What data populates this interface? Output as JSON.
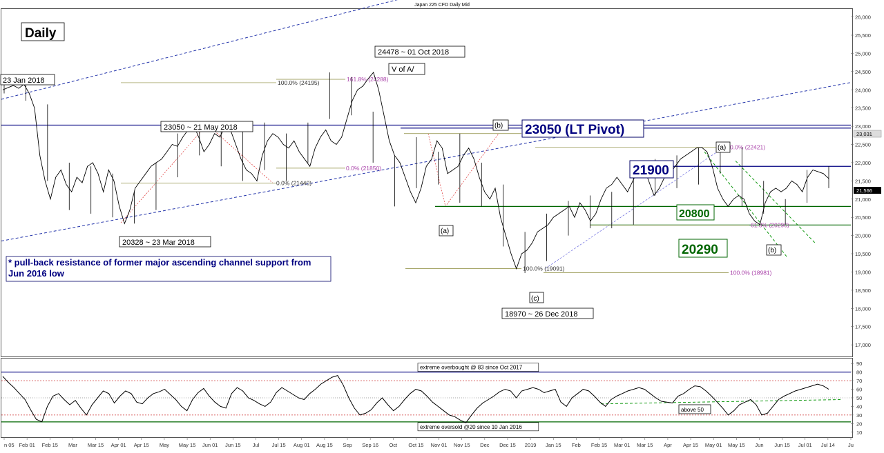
{
  "chart_data": [
    {
      "type": "line",
      "title": "Japan 225 CFD Daily Mid",
      "timeframe_label": "Daily",
      "y_axis": {
        "ticks": [
          "26,000",
          "25,500",
          "25,000",
          "24,500",
          "24,000",
          "23,500",
          "23,000",
          "22,500",
          "22,000",
          "21,500",
          "21,000",
          "20,500",
          "20,000",
          "19,500",
          "19,000",
          "18,500",
          "18,000",
          "17,500",
          "17,000"
        ],
        "ylim": [
          16700,
          26200
        ]
      },
      "x_axis": {
        "ticks": [
          "n 05",
          "Feb 01",
          "Feb 15",
          "Mar",
          "Mar 15",
          "Apr 01",
          "Apr 15",
          "May",
          "May 15",
          "Jun 01",
          "Jun 15",
          "Jul",
          "Jul 15",
          "Aug 01",
          "Aug 15",
          "Sep",
          "Sep 16",
          "Oct",
          "Oct 15",
          "Nov 01",
          "Nov 15",
          "Dec",
          "Dec 15",
          "2019",
          "Jan 15",
          "Feb",
          "Feb 15",
          "Mar 01",
          "Mar 15",
          "Apr",
          "Apr 15",
          "May 01",
          "May 15",
          "Jun",
          "Jun 15",
          "Jul 01",
          "Jul 14",
          "Ju"
        ]
      },
      "series": [
        {
          "values": [
            24000,
            24060,
            24120,
            24040,
            24150,
            23900,
            23500,
            22200,
            21500,
            21000,
            21600,
            21800,
            21400,
            21200,
            21600,
            21450,
            21900,
            22000,
            21700,
            21200,
            21800,
            21500,
            20800,
            20328,
            20700,
            21300,
            21500,
            21700,
            21900,
            22000,
            22100,
            22300,
            22500,
            22450,
            22700,
            22900,
            23050,
            22700,
            22300,
            22500,
            22800,
            22700,
            23000,
            22900,
            22500,
            22100,
            21800,
            21700,
            21500,
            22200,
            22600,
            22800,
            22700,
            22500,
            22400,
            22600,
            22300,
            22100,
            21900,
            22400,
            22700,
            22900,
            22600,
            22500,
            22700,
            23200,
            23700,
            24000,
            24100,
            24300,
            24478,
            24000,
            23300,
            22600,
            22200,
            22000,
            21600,
            21200,
            20900,
            21300,
            21900,
            22100,
            22600,
            22400,
            21700,
            21800,
            21900,
            22200,
            22400,
            22100,
            21600,
            21200,
            21000,
            21300,
            20500,
            20000,
            19500,
            19091,
            19500,
            19600,
            19800,
            20100,
            20200,
            20300,
            20500,
            20600,
            20700,
            20800,
            20500,
            20900,
            20700,
            20400,
            20600,
            21000,
            21300,
            21400,
            21600,
            21400,
            21200,
            21500,
            21800,
            21900,
            21500,
            21100,
            21300,
            21600,
            21700,
            21900,
            22100,
            22200,
            22300,
            22400,
            22421,
            22300,
            21900,
            21300,
            21000,
            20800,
            21000,
            21100,
            21000,
            20600,
            20400,
            20300,
            20900,
            21200,
            21300,
            21200,
            21300,
            21500,
            21400,
            21200,
            21600,
            21800,
            21750,
            21700,
            21566
          ],
          "ranges": [
            [
              23900,
              24200
            ],
            [
              23700,
              24150
            ],
            [
              21500,
              23600
            ],
            [
              20700,
              22000
            ],
            [
              20600,
              21900
            ],
            [
              20500,
              21700
            ],
            [
              20328,
              21200
            ],
            [
              20700,
              22000
            ],
            [
              21600,
              22800
            ],
            [
              22200,
              23050
            ],
            [
              21900,
              23000
            ],
            [
              21500,
              22900
            ],
            [
              21800,
              23100
            ],
            [
              21500,
              22800
            ],
            [
              22000,
              23100
            ],
            [
              23200,
              24478
            ],
            [
              23300,
              24350
            ],
            [
              22000,
              23400
            ],
            [
              20800,
              22200
            ],
            [
              21300,
              22700
            ],
            [
              21400,
              22300
            ],
            [
              20900,
              22798
            ],
            [
              20800,
              22000
            ],
            [
              19700,
              21400
            ],
            [
              18970,
              20100
            ],
            [
              19300,
              20600
            ],
            [
              20000,
              20950
            ],
            [
              20200,
              21100
            ],
            [
              20200,
              21200
            ],
            [
              20300,
              21900
            ],
            [
              21100,
              22100
            ],
            [
              21300,
              22200
            ],
            [
              21400,
              22400
            ],
            [
              21700,
              22500
            ],
            [
              20800,
              22421
            ],
            [
              20600,
              21500
            ],
            [
              20300,
              21000
            ],
            [
              20900,
              21800
            ],
            [
              21300,
              21900
            ]
          ]
        }
      ],
      "horizontal_levels": [
        {
          "value": 23031,
          "label": "23,031"
        },
        {
          "value": 22950,
          "label": ""
        },
        {
          "value": 21900,
          "label": "21900"
        },
        {
          "value": 20800,
          "label": "20800"
        },
        {
          "value": 20290,
          "label": "20290"
        }
      ],
      "last_price_label": "21,566",
      "fib_levels": [
        {
          "label": "100.0% (24195)",
          "value": 24195
        },
        {
          "label": "161.8% (24288)",
          "value": 24288
        },
        {
          "label": "0.0% (21850)",
          "value": 21850
        },
        {
          "label": "0.0% (21440)",
          "value": 21440
        },
        {
          "label": "0.0% (22798)",
          "value": 22798
        },
        {
          "label": "0.0% (22421)",
          "value": 22421
        },
        {
          "label": "61.8% (20290)",
          "value": 20290
        },
        {
          "label": "100.0% (19091)",
          "value": 19091
        },
        {
          "label": "100.0% (18981)",
          "value": 18981
        }
      ],
      "annotations": {
        "jan23": "23 Jan 2018",
        "peak": "24478 ~ 01 Oct 2018",
        "wave_v": "V of A/",
        "may21": "23050 ~ 21 May 2018",
        "mar23": "20328 ~ 23 Mar 2018",
        "dec26": "18970 ~ 26 Dec 2018",
        "lt_pivot": "23050 (LT Pivot)",
        "level_21900": "21900",
        "level_20800": "20800",
        "level_20290": "20290",
        "wave_b_top": "(b)",
        "wave_a_low": "(a)",
        "wave_c": "(c)",
        "wave_a_top": "(a)",
        "wave_b_low": "(b)",
        "note": "* pull-back resistance of former major ascending channel support from Jun 2016 low"
      }
    },
    {
      "type": "line",
      "title": "",
      "y_axis": {
        "ticks": [
          "90",
          "80",
          "70",
          "60",
          "50",
          "40",
          "30",
          "20",
          "10"
        ],
        "ylim": [
          5,
          95
        ]
      },
      "series": [
        {
          "values": [
            75,
            68,
            62,
            55,
            48,
            36,
            25,
            22,
            40,
            52,
            55,
            48,
            42,
            47,
            38,
            30,
            42,
            50,
            58,
            55,
            44,
            52,
            58,
            55,
            45,
            43,
            50,
            55,
            57,
            60,
            54,
            48,
            40,
            35,
            48,
            56,
            61,
            52,
            45,
            40,
            38,
            55,
            62,
            58,
            50,
            47,
            43,
            40,
            45,
            56,
            62,
            58,
            54,
            50,
            48,
            55,
            60,
            66,
            70,
            74,
            76,
            65,
            50,
            38,
            30,
            32,
            36,
            44,
            50,
            42,
            35,
            40,
            48,
            55,
            60,
            58,
            52,
            45,
            40,
            35,
            30,
            28,
            24,
            21,
            30,
            38,
            44,
            48,
            52,
            57,
            60,
            58,
            50,
            58,
            60,
            62,
            60,
            56,
            58,
            60,
            45,
            40,
            50,
            55,
            60,
            58,
            52,
            45,
            40,
            48,
            52,
            55,
            58,
            60,
            62,
            60,
            55,
            50,
            46,
            45,
            44,
            52,
            55,
            60,
            64,
            63,
            58,
            52,
            45,
            38,
            30,
            35,
            42,
            45,
            48,
            42,
            30,
            32,
            40,
            48,
            52,
            55,
            58,
            60,
            62,
            64,
            66,
            64,
            60
          ]
        }
      ],
      "reference_lines": [
        {
          "value": 80,
          "label": "extreme overbought @ 83 since Oct 2017"
        },
        {
          "value": 70,
          "label": ""
        },
        {
          "value": 50,
          "label": ""
        },
        {
          "value": 30,
          "label": ""
        },
        {
          "value": 22,
          "label": "extreme oversold @20 since 10 Jan 2016"
        }
      ],
      "annotation": "above 50"
    }
  ]
}
